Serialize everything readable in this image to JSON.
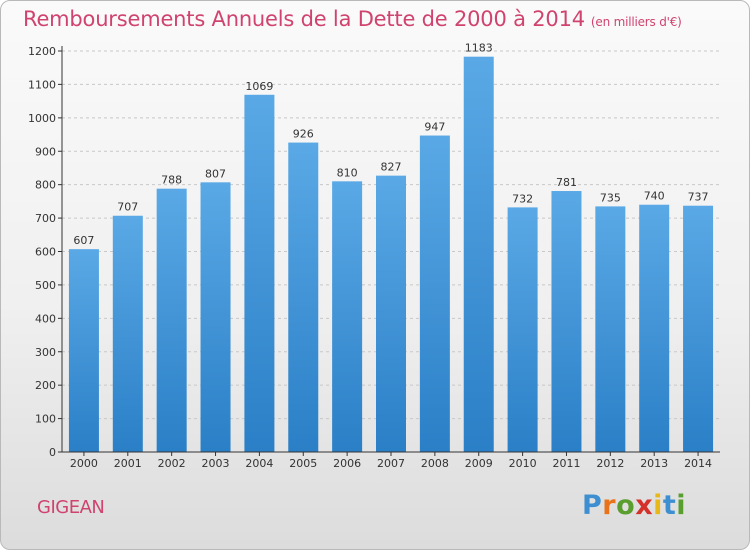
{
  "chart_data": {
    "type": "bar",
    "title": "Remboursements Annuels de la Dette de 2000 à 2014",
    "subtitle": "(en milliers d'€)",
    "categories": [
      "2000",
      "2001",
      "2002",
      "2003",
      "2004",
      "2005",
      "2006",
      "2007",
      "2008",
      "2009",
      "2010",
      "2011",
      "2012",
      "2013",
      "2014"
    ],
    "values": [
      607,
      707,
      788,
      807,
      1069,
      926,
      810,
      827,
      947,
      1183,
      732,
      781,
      735,
      740,
      737
    ],
    "ylim": [
      0,
      1200
    ],
    "yticks": [
      0,
      100,
      200,
      300,
      400,
      500,
      600,
      700,
      800,
      900,
      1000,
      1100,
      1200
    ],
    "grid": true,
    "bar_color": "#5aa9e6",
    "bar_color_dark": "#2a7fc6"
  },
  "footer": {
    "city": "GIGEAN",
    "logo_text": "Proxiti",
    "logo_colors": [
      "#3d8fd1",
      "#e8731a",
      "#5a9e2f",
      "#d4312b",
      "#e8b81a",
      "#3d8fd1",
      "#5a9e2f"
    ]
  },
  "colors": {
    "title": "#d0436f",
    "grid": "#c8c8c8",
    "axis": "#333333"
  }
}
